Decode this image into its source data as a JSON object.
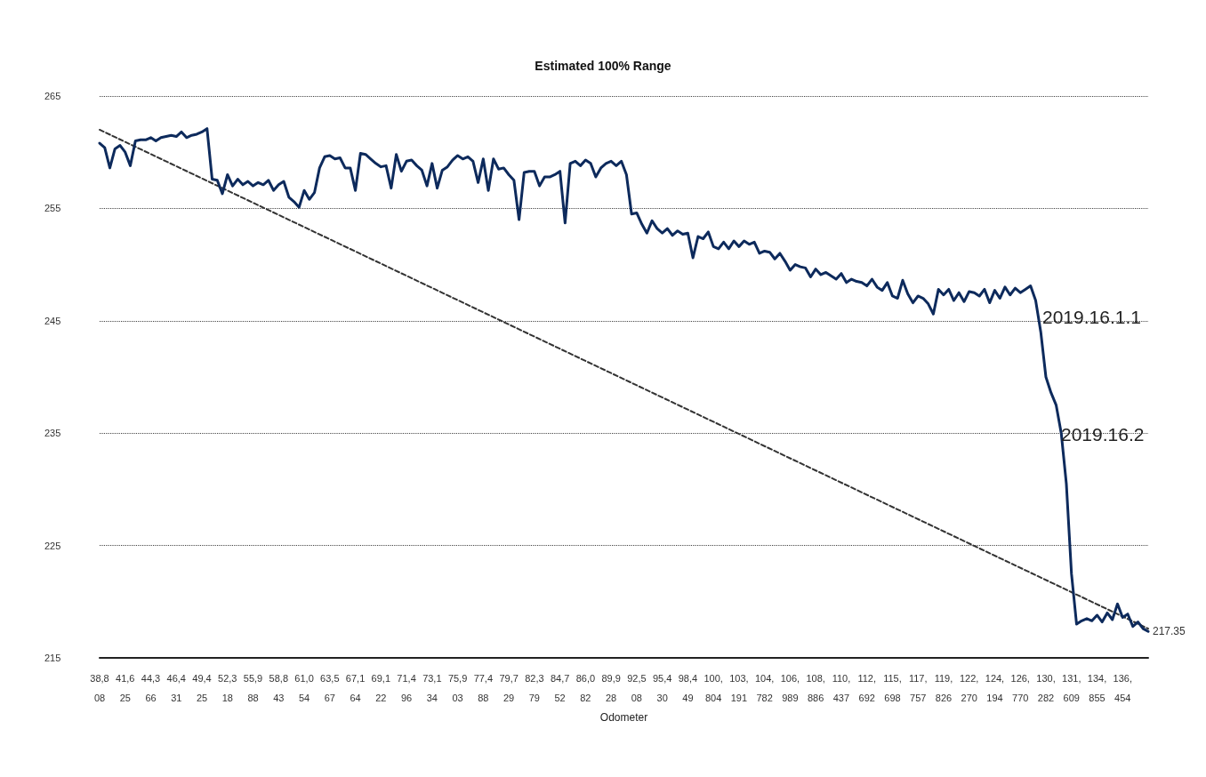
{
  "chart_data": {
    "type": "line",
    "title": "Estimated 100% Range",
    "xlabel": "Odometer",
    "categories": [
      "38,808",
      null,
      null,
      null,
      null,
      "41,625",
      null,
      null,
      null,
      null,
      "44,366",
      null,
      null,
      null,
      null,
      "46,431",
      null,
      null,
      null,
      null,
      "49,425",
      null,
      null,
      null,
      null,
      "52,318",
      null,
      null,
      null,
      null,
      "55,988",
      null,
      null,
      null,
      null,
      "58,843",
      null,
      null,
      null,
      null,
      "61,054",
      null,
      null,
      null,
      null,
      "63,567",
      null,
      null,
      null,
      null,
      "67,164",
      null,
      null,
      null,
      null,
      "69,122",
      null,
      null,
      null,
      null,
      "71,496",
      null,
      null,
      null,
      null,
      "73,134",
      null,
      null,
      null,
      null,
      "75,903",
      null,
      null,
      null,
      null,
      "77,488",
      null,
      null,
      null,
      null,
      "79,729",
      null,
      null,
      null,
      null,
      "82,379",
      null,
      null,
      null,
      null,
      "84,752",
      null,
      null,
      null,
      null,
      "86,082",
      null,
      null,
      null,
      null,
      "89,928",
      null,
      null,
      null,
      null,
      "92,508",
      null,
      null,
      null,
      null,
      "95,430",
      null,
      null,
      null,
      null,
      "98,449",
      null,
      null,
      null,
      null,
      "100,804",
      null,
      null,
      null,
      null,
      "103,191",
      null,
      null,
      null,
      null,
      "104,782",
      null,
      null,
      null,
      null,
      "106,989",
      null,
      null,
      null,
      null,
      "108,886",
      null,
      null,
      null,
      null,
      "110,437",
      null,
      null,
      null,
      null,
      "112,692",
      null,
      null,
      null,
      null,
      "115,698",
      null,
      null,
      null,
      null,
      "117,757",
      null,
      null,
      null,
      null,
      "119,826",
      null,
      null,
      null,
      null,
      "122,270",
      null,
      null,
      null,
      null,
      "124,194",
      null,
      null,
      null,
      null,
      "126,770",
      null,
      null,
      null,
      null,
      "130,282",
      null,
      null,
      null,
      null,
      "131,609",
      null,
      null,
      null,
      null,
      "134,855",
      null,
      null,
      null,
      null,
      "136,454",
      null,
      null,
      null,
      null,
      null
    ],
    "series": [
      {
        "color": "#0d2a5c",
        "values": [
          260.8,
          260.4,
          258.6,
          260.3,
          260.6,
          260.0,
          258.8,
          261.0,
          261.1,
          261.1,
          261.3,
          261.0,
          261.3,
          261.4,
          261.5,
          261.4,
          261.8,
          261.3,
          261.5,
          261.6,
          261.8,
          262.1,
          257.6,
          257.5,
          256.3,
          258.0,
          257.0,
          257.6,
          257.1,
          257.4,
          257.0,
          257.3,
          257.1,
          257.5,
          256.6,
          257.1,
          257.4,
          256.0,
          255.6,
          255.1,
          256.6,
          255.8,
          256.4,
          258.6,
          259.6,
          259.7,
          259.4,
          259.5,
          258.6,
          258.6,
          256.6,
          259.9,
          259.8,
          259.4,
          259.0,
          258.7,
          258.8,
          256.8,
          259.8,
          258.3,
          259.2,
          259.3,
          258.8,
          258.4,
          257.0,
          259.0,
          256.8,
          258.4,
          258.7,
          259.3,
          259.7,
          259.4,
          259.6,
          259.2,
          257.3,
          259.4,
          256.6,
          259.4,
          258.5,
          258.6,
          258.0,
          257.5,
          254.0,
          258.2,
          258.3,
          258.3,
          257.0,
          257.8,
          257.8,
          258.0,
          258.3,
          253.7,
          259.0,
          259.2,
          258.8,
          259.3,
          259.0,
          257.8,
          258.6,
          259.0,
          259.2,
          258.8,
          259.2,
          258.0,
          254.5,
          254.6,
          253.6,
          252.8,
          253.9,
          253.2,
          252.8,
          253.2,
          252.6,
          253.0,
          252.7,
          252.8,
          250.6,
          252.5,
          252.3,
          252.9,
          251.6,
          251.4,
          252.0,
          251.4,
          252.1,
          251.6,
          252.1,
          251.8,
          252.0,
          251.0,
          251.2,
          251.1,
          250.5,
          251.0,
          250.3,
          249.5,
          250.0,
          249.8,
          249.7,
          248.9,
          249.6,
          249.1,
          249.3,
          249.0,
          248.7,
          249.2,
          248.4,
          248.7,
          248.5,
          248.4,
          248.1,
          248.7,
          248.0,
          247.7,
          248.4,
          247.2,
          247.0,
          248.6,
          247.4,
          246.6,
          247.2,
          247.0,
          246.5,
          245.6,
          247.8,
          247.3,
          247.8,
          246.8,
          247.5,
          246.7,
          247.6,
          247.5,
          247.2,
          247.8,
          246.6,
          247.7,
          247.0,
          248.0,
          247.3,
          247.9,
          247.5,
          247.8,
          248.1,
          246.8,
          244.0,
          240.0,
          238.6,
          237.5,
          235.0,
          230.5,
          222.5,
          218.0,
          218.3,
          218.5,
          218.3,
          218.8,
          218.2,
          219.0,
          218.4,
          219.8,
          218.6,
          218.9,
          217.8,
          218.2,
          217.6,
          217.35
        ],
        "value_labels": [
          null,
          null,
          null,
          null,
          null,
          null,
          null,
          null,
          null,
          null,
          null,
          null,
          null,
          null,
          null,
          null,
          null,
          null,
          null,
          null,
          null,
          null,
          null,
          null,
          null,
          null,
          null,
          null,
          null,
          null,
          null,
          null,
          null,
          null,
          null,
          null,
          null,
          null,
          null,
          null,
          null,
          null,
          null,
          null,
          null,
          null,
          null,
          null,
          null,
          null,
          null,
          null,
          null,
          null,
          null,
          null,
          null,
          null,
          null,
          null,
          null,
          null,
          null,
          null,
          null,
          null,
          null,
          null,
          null,
          null,
          null,
          null,
          null,
          null,
          null,
          null,
          null,
          null,
          null,
          null,
          null,
          null,
          null,
          null,
          null,
          null,
          null,
          null,
          null,
          null,
          null,
          null,
          null,
          null,
          null,
          null,
          null,
          null,
          null,
          null,
          null,
          null,
          null,
          null,
          null,
          null,
          null,
          null,
          null,
          null,
          null,
          null,
          null,
          null,
          null,
          null,
          null,
          null,
          null,
          null,
          null,
          null,
          null,
          null,
          null,
          null,
          null,
          null,
          null,
          null,
          null,
          null,
          null,
          null,
          null,
          null,
          null,
          null,
          null,
          null,
          null,
          null,
          null,
          null,
          null,
          null,
          null,
          null,
          null,
          null,
          null,
          null,
          null,
          null,
          null,
          null,
          null,
          null,
          null,
          null,
          null,
          null,
          null,
          null,
          null,
          null,
          null,
          null,
          null,
          null,
          null,
          null,
          null,
          null,
          null,
          null,
          null,
          null,
          null,
          null,
          null,
          null,
          null,
          null,
          null,
          null,
          null,
          null,
          null,
          null,
          null,
          null,
          null,
          null,
          null,
          null,
          null,
          null,
          null,
          null,
          null,
          null,
          null,
          null,
          null,
          "217.35"
        ]
      },
      {
        "color": "#333333",
        "line_style": "dashed",
        "values": [
          262.0,
          null,
          null,
          null,
          null,
          null,
          null,
          null,
          null,
          null,
          null,
          null,
          null,
          null,
          null,
          null,
          null,
          null,
          null,
          null,
          null,
          null,
          null,
          null,
          null,
          null,
          null,
          null,
          null,
          null,
          null,
          null,
          null,
          null,
          null,
          null,
          null,
          null,
          null,
          null,
          null,
          null,
          null,
          null,
          null,
          null,
          null,
          null,
          null,
          null,
          null,
          null,
          null,
          null,
          null,
          null,
          null,
          null,
          null,
          null,
          null,
          null,
          null,
          null,
          null,
          null,
          null,
          null,
          null,
          null,
          null,
          null,
          null,
          null,
          null,
          null,
          null,
          null,
          null,
          null,
          null,
          null,
          null,
          null,
          null,
          null,
          null,
          null,
          null,
          null,
          null,
          null,
          null,
          null,
          null,
          null,
          null,
          null,
          null,
          null,
          null,
          null,
          null,
          null,
          null,
          null,
          null,
          null,
          null,
          null,
          null,
          null,
          null,
          null,
          null,
          null,
          null,
          null,
          null,
          null,
          null,
          null,
          null,
          null,
          null,
          null,
          null,
          null,
          null,
          null,
          null,
          null,
          null,
          null,
          null,
          null,
          null,
          null,
          null,
          null,
          null,
          null,
          null,
          null,
          null,
          null,
          null,
          null,
          null,
          null,
          null,
          null,
          null,
          null,
          null,
          null,
          null,
          null,
          null,
          null,
          null,
          null,
          null,
          null,
          null,
          null,
          null,
          null,
          null,
          null,
          null,
          null,
          null,
          null,
          null,
          null,
          null,
          null,
          null,
          null,
          null,
          null,
          null,
          null,
          null,
          null,
          null,
          null,
          null,
          null,
          null,
          null,
          null,
          null,
          null,
          null,
          null,
          null,
          null,
          null,
          null,
          null,
          null,
          null,
          null,
          217.6
        ]
      }
    ],
    "ylim": [
      215,
      265
    ],
    "yticks": [
      215,
      225,
      235,
      245,
      255,
      265
    ],
    "grid": "y",
    "marker": "none",
    "annotations": [
      "2019.16.1.1",
      "2019.16.2"
    ]
  }
}
